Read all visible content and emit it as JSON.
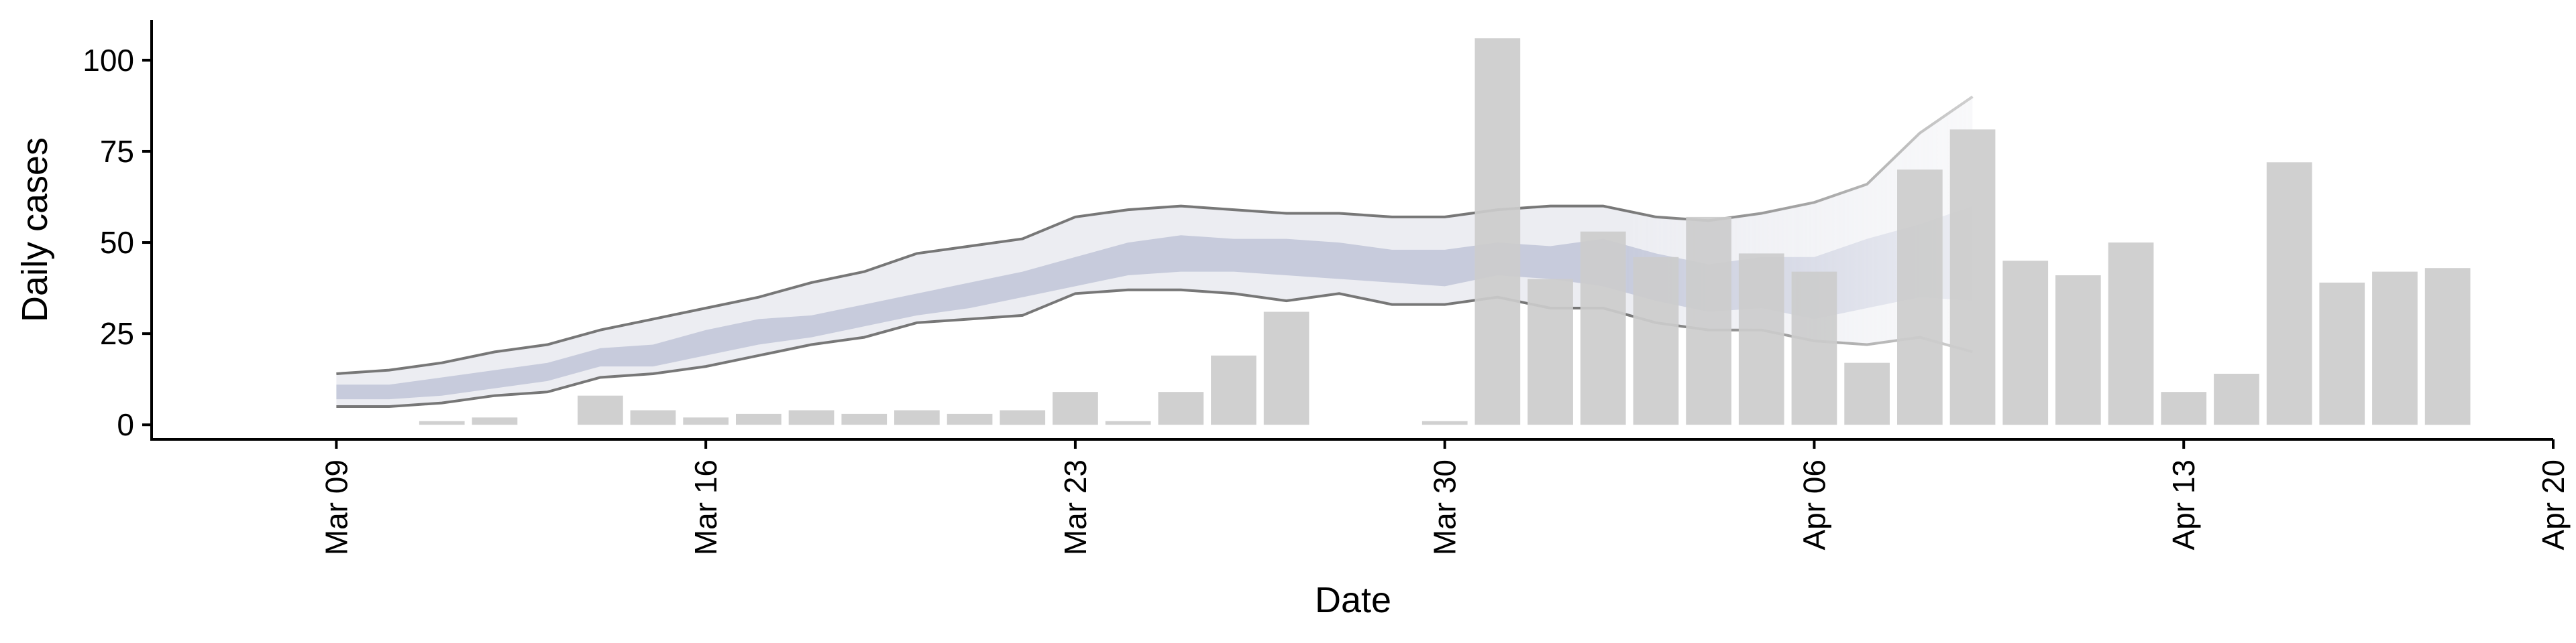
{
  "chart_data": {
    "type": "bar",
    "xlabel": "Date",
    "ylabel": "Daily cases",
    "ylim": [
      -4,
      111
    ],
    "yticks": [
      0,
      25,
      50,
      75,
      100
    ],
    "xlim": [
      "2020-03-05T12:00",
      "2020-04-20"
    ],
    "xticks": [
      {
        "date": "2020-03-09",
        "label": "Mar 09"
      },
      {
        "date": "2020-03-16",
        "label": "Mar 16"
      },
      {
        "date": "2020-03-23",
        "label": "Mar 23"
      },
      {
        "date": "2020-03-30",
        "label": "Mar 30"
      },
      {
        "date": "2020-04-06",
        "label": "Apr 06"
      },
      {
        "date": "2020-04-13",
        "label": "Apr 13"
      },
      {
        "date": "2020-04-20",
        "label": "Apr 20"
      }
    ],
    "bar_color": "#cccccc",
    "band_color": "#aab1cb",
    "outer_band_color": "#d4d6e2",
    "line_color": "#777777",
    "grid": false,
    "bars": [
      {
        "date": "2020-03-11",
        "value": 1
      },
      {
        "date": "2020-03-12",
        "value": 2
      },
      {
        "date": "2020-03-14",
        "value": 8
      },
      {
        "date": "2020-03-15",
        "value": 4
      },
      {
        "date": "2020-03-16",
        "value": 2
      },
      {
        "date": "2020-03-17",
        "value": 3
      },
      {
        "date": "2020-03-18",
        "value": 4
      },
      {
        "date": "2020-03-19",
        "value": 3
      },
      {
        "date": "2020-03-20",
        "value": 4
      },
      {
        "date": "2020-03-21",
        "value": 3
      },
      {
        "date": "2020-03-22",
        "value": 4
      },
      {
        "date": "2020-03-23",
        "value": 9
      },
      {
        "date": "2020-03-24",
        "value": 1
      },
      {
        "date": "2020-03-25",
        "value": 9
      },
      {
        "date": "2020-03-26",
        "value": 19
      },
      {
        "date": "2020-03-27",
        "value": 31
      },
      {
        "date": "2020-03-30",
        "value": 1
      },
      {
        "date": "2020-03-31",
        "value": 106
      },
      {
        "date": "2020-04-01",
        "value": 40
      },
      {
        "date": "2020-04-02",
        "value": 53
      },
      {
        "date": "2020-04-03",
        "value": 46
      },
      {
        "date": "2020-04-04",
        "value": 57
      },
      {
        "date": "2020-04-05",
        "value": 47
      },
      {
        "date": "2020-04-06",
        "value": 42
      },
      {
        "date": "2020-04-07",
        "value": 17
      },
      {
        "date": "2020-04-08",
        "value": 70
      },
      {
        "date": "2020-04-09",
        "value": 81
      },
      {
        "date": "2020-04-10",
        "value": 45
      },
      {
        "date": "2020-04-11",
        "value": 41
      },
      {
        "date": "2020-04-12",
        "value": 50
      },
      {
        "date": "2020-04-13",
        "value": 9
      },
      {
        "date": "2020-04-14",
        "value": 14
      },
      {
        "date": "2020-04-15",
        "value": 72
      },
      {
        "date": "2020-04-16",
        "value": 39
      },
      {
        "date": "2020-04-17",
        "value": 42
      },
      {
        "date": "2020-04-18",
        "value": 43
      }
    ],
    "estimate": {
      "dates": [
        "2020-03-09",
        "2020-03-10",
        "2020-03-11",
        "2020-03-12",
        "2020-03-13",
        "2020-03-14",
        "2020-03-15",
        "2020-03-16",
        "2020-03-17",
        "2020-03-18",
        "2020-03-19",
        "2020-03-20",
        "2020-03-21",
        "2020-03-22",
        "2020-03-23",
        "2020-03-24",
        "2020-03-25",
        "2020-03-26",
        "2020-03-27",
        "2020-03-28",
        "2020-03-29",
        "2020-03-30",
        "2020-03-31",
        "2020-04-01",
        "2020-04-02",
        "2020-04-03",
        "2020-04-04",
        "2020-04-05",
        "2020-04-06",
        "2020-04-07",
        "2020-04-08",
        "2020-04-09"
      ],
      "outer_upper": [
        14,
        15,
        17,
        20,
        22,
        26,
        29,
        32,
        35,
        39,
        42,
        47,
        49,
        51,
        57,
        59,
        60,
        59,
        58,
        58,
        57,
        57,
        59,
        60,
        60,
        57,
        56,
        58,
        61,
        66,
        80,
        90
      ],
      "outer_lower": [
        5,
        5,
        6,
        8,
        9,
        13,
        14,
        16,
        19,
        22,
        24,
        28,
        29,
        30,
        36,
        37,
        37,
        36,
        34,
        36,
        33,
        33,
        35,
        32,
        32,
        28,
        26,
        26,
        23,
        22,
        24,
        20
      ],
      "inner_upper": [
        11,
        11,
        13,
        15,
        17,
        21,
        22,
        26,
        29,
        30,
        33,
        36,
        39,
        42,
        46,
        50,
        52,
        51,
        51,
        50,
        48,
        48,
        50,
        49,
        51,
        47,
        44,
        46,
        46,
        51,
        55,
        60
      ],
      "inner_lower": [
        7,
        7,
        8,
        10,
        12,
        16,
        16,
        19,
        22,
        24,
        27,
        30,
        32,
        35,
        38,
        41,
        42,
        42,
        41,
        40,
        39,
        38,
        41,
        40,
        38,
        34,
        31,
        32,
        29,
        32,
        35,
        34
      ],
      "forecast_start": "2020-04-06"
    }
  }
}
